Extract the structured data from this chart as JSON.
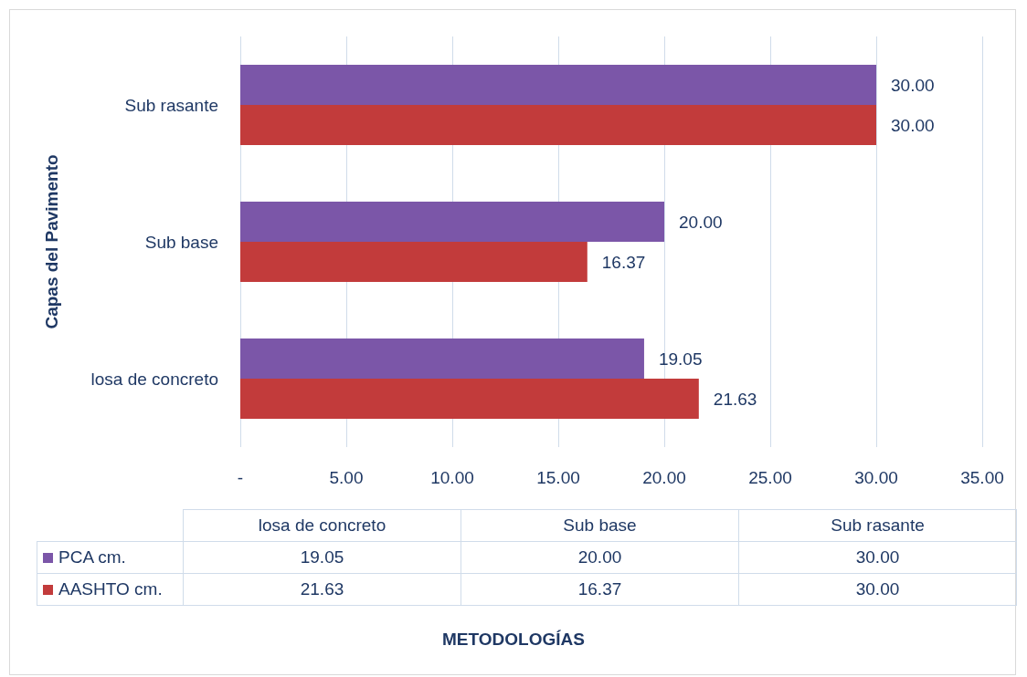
{
  "chart_data": {
    "type": "bar",
    "orientation": "horizontal",
    "ylabel": "Capas del Pavimento",
    "annotations": [
      "METODOLOGÍAS"
    ],
    "categories": [
      "Sub rasante",
      "Sub base",
      "losa de concreto"
    ],
    "series": [
      {
        "name": "PCA cm.",
        "color": "#7b56a8",
        "values": [
          30.0,
          20.0,
          19.05
        ],
        "value_labels": [
          "30.00",
          "20.00",
          "19.05"
        ]
      },
      {
        "name": "AASHTO cm.",
        "color": "#c23b3b",
        "values": [
          30.0,
          16.37,
          21.63
        ],
        "value_labels": [
          "30.00",
          "16.37",
          "21.63"
        ]
      }
    ],
    "xlim": [
      0,
      35
    ],
    "xticks": [
      {
        "value": 0,
        "label": "-"
      },
      {
        "value": 5,
        "label": "5.00"
      },
      {
        "value": 10,
        "label": "10.00"
      },
      {
        "value": 15,
        "label": "15.00"
      },
      {
        "value": 20,
        "label": "20.00"
      },
      {
        "value": 25,
        "label": "25.00"
      },
      {
        "value": 30,
        "label": "30.00"
      },
      {
        "value": 35,
        "label": "35.00"
      }
    ],
    "grid": "x",
    "legend": "bottom"
  }
}
